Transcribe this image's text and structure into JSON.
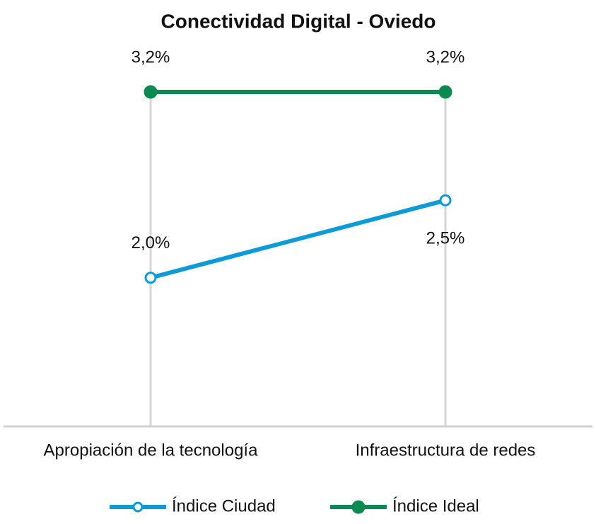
{
  "chart_data": {
    "type": "line",
    "title": "Conectividad Digital - Oviedo",
    "categories": [
      "Apropiación de la tecnología",
      "Infraestructura de redes"
    ],
    "series": [
      {
        "name": "Índice Ciudad",
        "color": "#0e9ad6",
        "values": [
          2.0,
          2.5
        ],
        "value_labels": [
          "2,0%",
          "2,5%"
        ]
      },
      {
        "name": "Índice Ideal",
        "color": "#0d8a52",
        "values": [
          3.2,
          3.2
        ],
        "value_labels": [
          "3,2%",
          "3,2%"
        ]
      }
    ],
    "legend": "bottom"
  }
}
